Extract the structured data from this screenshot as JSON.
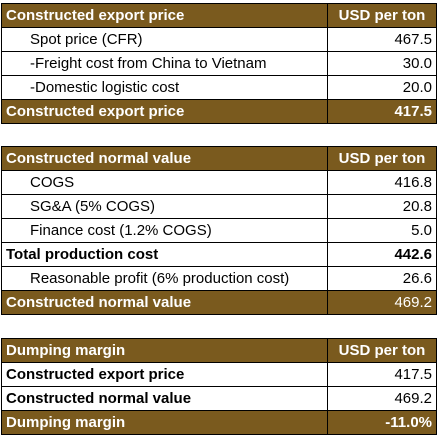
{
  "export_table": {
    "header": {
      "label": "Constructed export price",
      "unit": "USD per ton"
    },
    "rows": [
      {
        "label": "Spot price (CFR)",
        "value": "467.5"
      },
      {
        "label": "-Freight cost from China to Vietnam",
        "value": "30.0"
      },
      {
        "label": "-Domestic logistic cost",
        "value": "20.0"
      }
    ],
    "total": {
      "label": "Constructed export price",
      "value": "417.5"
    }
  },
  "normal_table": {
    "header": {
      "label": "Constructed normal value",
      "unit": "USD per ton"
    },
    "rows": [
      {
        "label": "COGS",
        "value": "416.8"
      },
      {
        "label": "SG&A (5% COGS)",
        "value": "20.8"
      },
      {
        "label": "Finance cost (1.2% COGS)",
        "value": "5.0"
      }
    ],
    "subtotal": {
      "label": "Total production cost",
      "value": "442.6"
    },
    "profit": {
      "label": "Reasonable profit (6% production cost)",
      "value": "26.6"
    },
    "total": {
      "label": "Constructed normal value",
      "value": "469.2"
    }
  },
  "margin_table": {
    "header": {
      "label": "Dumping margin",
      "unit": "USD per ton"
    },
    "rows": [
      {
        "label": "Constructed export price",
        "value": "417.5"
      },
      {
        "label": "Constructed normal value",
        "value": "469.2"
      }
    ],
    "total": {
      "label": "Dumping margin",
      "value": "-11.0%"
    }
  }
}
